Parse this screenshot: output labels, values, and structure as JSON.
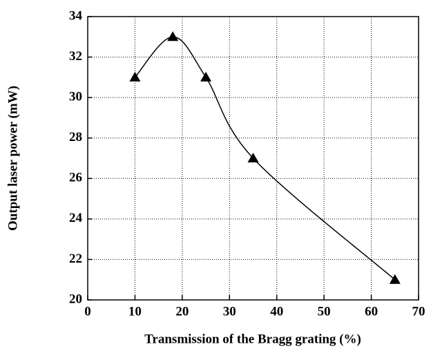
{
  "chart_data": {
    "type": "scatter",
    "x_label": "Transmission of the Bragg grating (%)",
    "y_label": "Output laser power (mW)",
    "x": [
      10,
      18,
      25,
      35,
      65
    ],
    "values": [
      31,
      33,
      31,
      27,
      21
    ],
    "color": "#000000",
    "marker": "triangle",
    "smooth": true,
    "xlim": [
      0,
      70
    ],
    "xticks": [
      0,
      10,
      20,
      30,
      40,
      50,
      60,
      70
    ],
    "ylim": [
      20,
      34
    ],
    "yticks": [
      20,
      22,
      24,
      26,
      28,
      30,
      32,
      34
    ],
    "grid": true
  }
}
